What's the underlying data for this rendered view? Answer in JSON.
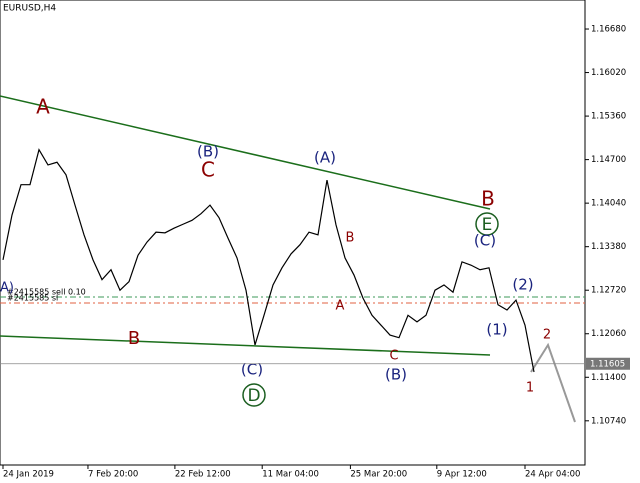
{
  "chart_data": {
    "type": "line",
    "title": "EURUSD,H4",
    "values": [
      1.1318,
      1.1386,
      1.1432,
      1.1432,
      1.1485,
      1.1462,
      1.1466,
      1.1447,
      1.1401,
      1.1356,
      1.1318,
      1.1288,
      1.1303,
      1.1272,
      1.1285,
      1.1325,
      1.1345,
      1.136,
      1.1359,
      1.1366,
      1.1372,
      1.1378,
      1.1388,
      1.1401,
      1.1382,
      1.1351,
      1.1321,
      1.1272,
      1.1189,
      1.1234,
      1.128,
      1.1306,
      1.1327,
      1.1341,
      1.136,
      1.1356,
      1.1439,
      1.1371,
      1.1321,
      1.1295,
      1.126,
      1.1234,
      1.1219,
      1.1204,
      1.12,
      1.1234,
      1.1224,
      1.1234,
      1.1272,
      1.128,
      1.1269,
      1.1315,
      1.131,
      1.1303,
      1.1306,
      1.125,
      1.1242,
      1.1257,
      1.1219,
      1.1148
    ],
    "color": "#000000",
    "xlim": [
      0,
      59
    ],
    "xticks": [
      {
        "value": 0,
        "label": "24 Jan 2019"
      },
      {
        "value": 9.44,
        "label": "7 Feb 20:00"
      },
      {
        "value": 19.1,
        "label": "22 Feb 12:00"
      },
      {
        "value": 28.8,
        "label": "11 Mar 04:00"
      },
      {
        "value": 38.6,
        "label": "25 Mar 20:00"
      },
      {
        "value": 48.2,
        "label": "9 Apr 12:00"
      },
      {
        "value": 58,
        "label": "24 Apr 04:00"
      }
    ],
    "ylim": [
      1.1007,
      1.1712
    ],
    "yticks": [
      {
        "value": 1.1668,
        "label": "1.16680"
      },
      {
        "value": 1.1602,
        "label": "1.16020"
      },
      {
        "value": 1.1536,
        "label": "1.15360"
      },
      {
        "value": 1.147,
        "label": "1.14700"
      },
      {
        "value": 1.1404,
        "label": "1.14040"
      },
      {
        "value": 1.1338,
        "label": "1.13380"
      },
      {
        "value": 1.1272,
        "label": "1.12720"
      },
      {
        "value": 1.1206,
        "label": "1.12060"
      },
      {
        "value": 1.114,
        "label": "1.11400"
      },
      {
        "value": 1.1074,
        "label": "1.10740"
      }
    ],
    "current_price": {
      "value": 1.11605,
      "label": "1.11605"
    },
    "orders": [
      "#2415585 sell 0.10",
      "#2415585 sl"
    ],
    "annotations": [
      "A",
      "(B)",
      "C",
      "(A)",
      "B",
      "A",
      "B",
      "E",
      "(C)",
      "(2)",
      "(1)",
      "2",
      "1",
      "C",
      "(B)",
      "B",
      "(C)",
      "D",
      "A)"
    ]
  }
}
